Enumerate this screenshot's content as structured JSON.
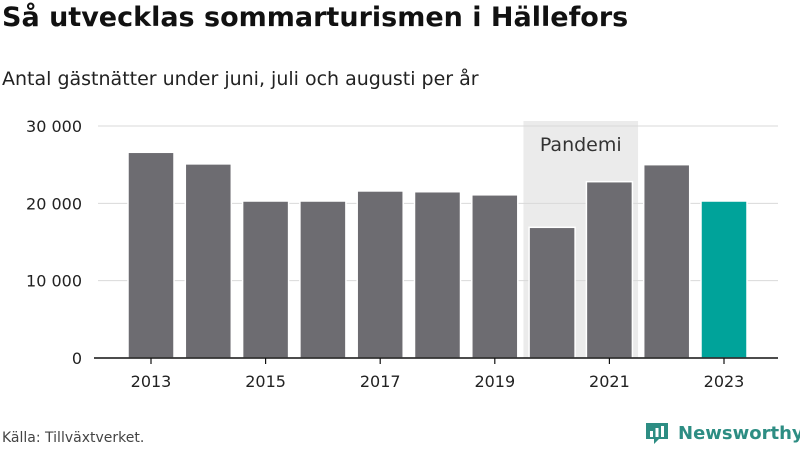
{
  "title": "Så utvecklas sommarturismen i Hällefors",
  "subtitle": "Antal gästnätter under juni, juli och augusti per år",
  "source": "Källa: Tillväxtverket.",
  "brand": {
    "name": "Newsworthy",
    "icon": "newsworthy-logo-icon",
    "color": "#2d8d83"
  },
  "colors": {
    "bar": "#6d6c71",
    "highlight": "#00a39a",
    "band": "#ebebeb",
    "grid": "#d9d9d9"
  },
  "chart_data": {
    "type": "bar",
    "title": "Så utvecklas sommarturismen i Hällefors",
    "subtitle": "Antal gästnätter under juni, juli och augusti per år",
    "categories": [
      "2013",
      "2014",
      "2015",
      "2016",
      "2017",
      "2018",
      "2019",
      "2020",
      "2021",
      "2022",
      "2023"
    ],
    "values": [
      26600,
      25100,
      20300,
      20300,
      21600,
      21500,
      21100,
      16900,
      22800,
      25000,
      20300
    ],
    "highlight_category": "2023",
    "x_tick_labels": [
      "2013",
      "2015",
      "2017",
      "2019",
      "2021",
      "2023"
    ],
    "y_ticks": [
      0,
      10000,
      20000,
      30000
    ],
    "y_tick_labels": [
      "0",
      "10 000",
      "20 000",
      "30 000"
    ],
    "ylim": [
      0,
      30000
    ],
    "xlabel": "",
    "ylabel": "",
    "grid": true,
    "annotations": [
      {
        "label": "Pandemi",
        "from": "2020",
        "to": "2021"
      }
    ]
  }
}
